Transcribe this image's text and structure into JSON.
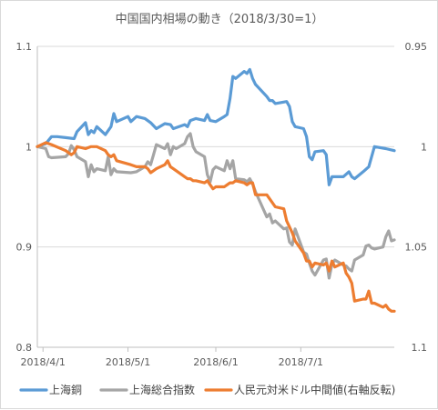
{
  "chart_data": {
    "type": "line",
    "title": "中国国内相場の動き（2018/3/30=1）",
    "x_tick_labels": [
      "2018/4/1",
      "2018/5/1",
      "2018/6/1",
      "2018/7/1"
    ],
    "x_range": [
      "2018-03-30",
      "2018-08-03"
    ],
    "y_left": {
      "min": 0.8,
      "max": 1.1,
      "ticks": [
        "0.8",
        "0.9",
        "1",
        "1.1"
      ]
    },
    "y_right": {
      "min": 0.95,
      "max": 1.1,
      "reversed": true,
      "ticks": [
        "0.95",
        "1",
        "1.05",
        "1.1"
      ]
    },
    "grid": "horizontal",
    "legend_position": "bottom",
    "series": [
      {
        "name": "上海銅",
        "color": "#5b9bd5",
        "axis": "left",
        "points": [
          [
            "2018-03-30",
            1.0
          ],
          [
            "2018-04-02",
            1.003
          ],
          [
            "2018-04-04",
            1.01
          ],
          [
            "2018-04-06",
            1.01
          ],
          [
            "2018-04-09",
            1.009
          ],
          [
            "2018-04-12",
            1.008
          ],
          [
            "2018-04-13",
            1.015
          ],
          [
            "2018-04-16",
            1.024
          ],
          [
            "2018-04-17",
            1.012
          ],
          [
            "2018-04-18",
            1.016
          ],
          [
            "2018-04-19",
            1.014
          ],
          [
            "2018-04-20",
            1.02
          ],
          [
            "2018-04-23",
            1.012
          ],
          [
            "2018-04-25",
            1.02
          ],
          [
            "2018-04-26",
            1.033
          ],
          [
            "2018-04-27",
            1.025
          ],
          [
            "2018-05-01",
            1.03
          ],
          [
            "2018-05-02",
            1.025
          ],
          [
            "2018-05-04",
            1.03
          ],
          [
            "2018-05-07",
            1.028
          ],
          [
            "2018-05-09",
            1.024
          ],
          [
            "2018-05-11",
            1.018
          ],
          [
            "2018-05-14",
            1.023
          ],
          [
            "2018-05-16",
            1.022
          ],
          [
            "2018-05-17",
            1.018
          ],
          [
            "2018-05-21",
            1.022
          ],
          [
            "2018-05-22",
            1.02
          ],
          [
            "2018-05-23",
            1.026
          ],
          [
            "2018-05-25",
            1.028
          ],
          [
            "2018-05-28",
            1.026
          ],
          [
            "2018-05-29",
            1.032
          ],
          [
            "2018-05-30",
            1.026
          ],
          [
            "2018-06-01",
            1.025
          ],
          [
            "2018-06-04",
            1.03
          ],
          [
            "2018-06-05",
            1.032
          ],
          [
            "2018-06-06",
            1.048
          ],
          [
            "2018-06-07",
            1.07
          ],
          [
            "2018-06-08",
            1.068
          ],
          [
            "2018-06-11",
            1.075
          ],
          [
            "2018-06-12",
            1.073
          ],
          [
            "2018-06-13",
            1.077
          ],
          [
            "2018-06-14",
            1.068
          ],
          [
            "2018-06-15",
            1.062
          ],
          [
            "2018-06-19",
            1.05
          ],
          [
            "2018-06-20",
            1.046
          ],
          [
            "2018-06-21",
            1.046
          ],
          [
            "2018-06-22",
            1.043
          ],
          [
            "2018-06-26",
            1.045
          ],
          [
            "2018-06-27",
            1.04
          ],
          [
            "2018-06-28",
            1.025
          ],
          [
            "2018-06-29",
            1.02
          ],
          [
            "2018-07-02",
            1.018
          ],
          [
            "2018-07-03",
            1.01
          ],
          [
            "2018-07-04",
            0.99
          ],
          [
            "2018-07-05",
            0.987
          ],
          [
            "2018-07-06",
            0.995
          ],
          [
            "2018-07-09",
            0.996
          ],
          [
            "2018-07-10",
            0.992
          ],
          [
            "2018-07-11",
            0.962
          ],
          [
            "2018-07-12",
            0.97
          ],
          [
            "2018-07-16",
            0.97
          ],
          [
            "2018-07-18",
            0.975
          ],
          [
            "2018-07-19",
            0.97
          ],
          [
            "2018-07-20",
            0.968
          ],
          [
            "2018-07-23",
            0.975
          ],
          [
            "2018-07-25",
            0.98
          ],
          [
            "2018-07-27",
            1.0
          ],
          [
            "2018-07-31",
            0.998
          ],
          [
            "2018-08-03",
            0.996
          ]
        ]
      },
      {
        "name": "上海総合指数",
        "color": "#a5a5a5",
        "axis": "left",
        "points": [
          [
            "2018-03-30",
            1.0
          ],
          [
            "2018-04-02",
            0.998
          ],
          [
            "2018-04-03",
            0.99
          ],
          [
            "2018-04-04",
            0.989
          ],
          [
            "2018-04-09",
            0.99
          ],
          [
            "2018-04-10",
            0.993
          ],
          [
            "2018-04-11",
            1.001
          ],
          [
            "2018-04-12",
            0.997
          ],
          [
            "2018-04-13",
            0.99
          ],
          [
            "2018-04-16",
            0.985
          ],
          [
            "2018-04-17",
            0.97
          ],
          [
            "2018-04-18",
            0.982
          ],
          [
            "2018-04-19",
            0.975
          ],
          [
            "2018-04-20",
            0.978
          ],
          [
            "2018-04-23",
            0.976
          ],
          [
            "2018-04-24",
            0.99
          ],
          [
            "2018-04-25",
            0.972
          ],
          [
            "2018-04-26",
            0.978
          ],
          [
            "2018-04-27",
            0.975
          ],
          [
            "2018-05-02",
            0.974
          ],
          [
            "2018-05-04",
            0.975
          ],
          [
            "2018-05-07",
            0.98
          ],
          [
            "2018-05-08",
            0.985
          ],
          [
            "2018-05-09",
            0.982
          ],
          [
            "2018-05-10",
            0.992
          ],
          [
            "2018-05-11",
            1.002
          ],
          [
            "2018-05-14",
            0.998
          ],
          [
            "2018-05-15",
            1.003
          ],
          [
            "2018-05-16",
            0.992
          ],
          [
            "2018-05-17",
            1.0
          ],
          [
            "2018-05-18",
            0.998
          ],
          [
            "2018-05-21",
            1.003
          ],
          [
            "2018-05-22",
            1.01
          ],
          [
            "2018-05-23",
            1.013
          ],
          [
            "2018-05-24",
            1.0
          ],
          [
            "2018-05-25",
            0.995
          ],
          [
            "2018-05-28",
            0.99
          ],
          [
            "2018-05-29",
            0.972
          ],
          [
            "2018-05-30",
            0.965
          ],
          [
            "2018-05-31",
            0.977
          ],
          [
            "2018-06-01",
            0.98
          ],
          [
            "2018-06-04",
            0.976
          ],
          [
            "2018-06-05",
            0.986
          ],
          [
            "2018-06-06",
            0.978
          ],
          [
            "2018-06-07",
            0.986
          ],
          [
            "2018-06-08",
            0.968
          ],
          [
            "2018-06-11",
            0.967
          ],
          [
            "2018-06-12",
            0.965
          ],
          [
            "2018-06-13",
            0.968
          ],
          [
            "2018-06-14",
            0.963
          ],
          [
            "2018-06-15",
            0.955
          ],
          [
            "2018-06-19",
            0.93
          ],
          [
            "2018-06-20",
            0.933
          ],
          [
            "2018-06-21",
            0.924
          ],
          [
            "2018-06-22",
            0.926
          ],
          [
            "2018-06-25",
            0.918
          ],
          [
            "2018-06-26",
            0.919
          ],
          [
            "2018-06-27",
            0.905
          ],
          [
            "2018-06-28",
            0.902
          ],
          [
            "2018-06-29",
            0.918
          ],
          [
            "2018-07-02",
            0.895
          ],
          [
            "2018-07-03",
            0.893
          ],
          [
            "2018-07-04",
            0.884
          ],
          [
            "2018-07-05",
            0.876
          ],
          [
            "2018-07-06",
            0.872
          ],
          [
            "2018-07-09",
            0.887
          ],
          [
            "2018-07-10",
            0.888
          ],
          [
            "2018-07-11",
            0.869
          ],
          [
            "2018-07-12",
            0.883
          ],
          [
            "2018-07-13",
            0.887
          ],
          [
            "2018-07-16",
            0.882
          ],
          [
            "2018-07-17",
            0.881
          ],
          [
            "2018-07-18",
            0.878
          ],
          [
            "2018-07-19",
            0.876
          ],
          [
            "2018-07-20",
            0.887
          ],
          [
            "2018-07-23",
            0.892
          ],
          [
            "2018-07-24",
            0.901
          ],
          [
            "2018-07-25",
            0.902
          ],
          [
            "2018-07-26",
            0.899
          ],
          [
            "2018-07-27",
            0.898
          ],
          [
            "2018-07-30",
            0.9
          ],
          [
            "2018-07-31",
            0.91
          ],
          [
            "2018-08-01",
            0.916
          ],
          [
            "2018-08-02",
            0.906
          ],
          [
            "2018-08-03",
            0.907
          ]
        ]
      },
      {
        "name": "人民元対米ドル中間値(右軸反転)",
        "color": "#ed7d31",
        "axis": "right",
        "points": [
          [
            "2018-03-30",
            1.0
          ],
          [
            "2018-04-02",
            0.998
          ],
          [
            "2018-04-04",
            0.999
          ],
          [
            "2018-04-09",
            1.002
          ],
          [
            "2018-04-11",
            1.004
          ],
          [
            "2018-04-12",
            1.003
          ],
          [
            "2018-04-13",
            1.0
          ],
          [
            "2018-04-16",
            1.001
          ],
          [
            "2018-04-18",
            1.0
          ],
          [
            "2018-04-20",
            1.0
          ],
          [
            "2018-04-23",
            1.002
          ],
          [
            "2018-04-24",
            1.004
          ],
          [
            "2018-04-25",
            1.005
          ],
          [
            "2018-04-26",
            1.004
          ],
          [
            "2018-04-27",
            1.007
          ],
          [
            "2018-05-02",
            1.009
          ],
          [
            "2018-05-04",
            1.01
          ],
          [
            "2018-05-07",
            1.01
          ],
          [
            "2018-05-08",
            1.011
          ],
          [
            "2018-05-09",
            1.013
          ],
          [
            "2018-05-10",
            1.012
          ],
          [
            "2018-05-11",
            1.011
          ],
          [
            "2018-05-14",
            1.009
          ],
          [
            "2018-05-15",
            1.007
          ],
          [
            "2018-05-16",
            1.01
          ],
          [
            "2018-05-17",
            1.011
          ],
          [
            "2018-05-21",
            1.015
          ],
          [
            "2018-05-22",
            1.016
          ],
          [
            "2018-05-23",
            1.016
          ],
          [
            "2018-05-24",
            1.017
          ],
          [
            "2018-05-25",
            1.017
          ],
          [
            "2018-05-28",
            1.018
          ],
          [
            "2018-05-29",
            1.017
          ],
          [
            "2018-05-30",
            1.019
          ],
          [
            "2018-05-31",
            1.021
          ],
          [
            "2018-06-01",
            1.02
          ],
          [
            "2018-06-04",
            1.02
          ],
          [
            "2018-06-05",
            1.019
          ],
          [
            "2018-06-06",
            1.018
          ],
          [
            "2018-06-07",
            1.018
          ],
          [
            "2018-06-08",
            1.017
          ],
          [
            "2018-06-11",
            1.018
          ],
          [
            "2018-06-12",
            1.019
          ],
          [
            "2018-06-13",
            1.018
          ],
          [
            "2018-06-14",
            1.018
          ],
          [
            "2018-06-15",
            1.024
          ],
          [
            "2018-06-19",
            1.024
          ],
          [
            "2018-06-20",
            1.026
          ],
          [
            "2018-06-22",
            1.03
          ],
          [
            "2018-06-25",
            1.031
          ],
          [
            "2018-06-26",
            1.037
          ],
          [
            "2018-06-27",
            1.04
          ],
          [
            "2018-06-28",
            1.043
          ],
          [
            "2018-06-29",
            1.047
          ],
          [
            "2018-07-02",
            1.053
          ],
          [
            "2018-07-03",
            1.057
          ],
          [
            "2018-07-04",
            1.057
          ],
          [
            "2018-07-05",
            1.06
          ],
          [
            "2018-07-06",
            1.058
          ],
          [
            "2018-07-09",
            1.059
          ],
          [
            "2018-07-10",
            1.058
          ],
          [
            "2018-07-11",
            1.062
          ],
          [
            "2018-07-12",
            1.057
          ],
          [
            "2018-07-13",
            1.06
          ],
          [
            "2018-07-16",
            1.058
          ],
          [
            "2018-07-17",
            1.063
          ],
          [
            "2018-07-18",
            1.065
          ],
          [
            "2018-07-19",
            1.068
          ],
          [
            "2018-07-20",
            1.077
          ],
          [
            "2018-07-23",
            1.076
          ],
          [
            "2018-07-24",
            1.076
          ],
          [
            "2018-07-25",
            1.072
          ],
          [
            "2018-07-26",
            1.078
          ],
          [
            "2018-07-27",
            1.078
          ],
          [
            "2018-07-30",
            1.08
          ],
          [
            "2018-07-31",
            1.079
          ],
          [
            "2018-08-01",
            1.081
          ],
          [
            "2018-08-02",
            1.082
          ],
          [
            "2018-08-03",
            1.082
          ]
        ]
      }
    ]
  }
}
